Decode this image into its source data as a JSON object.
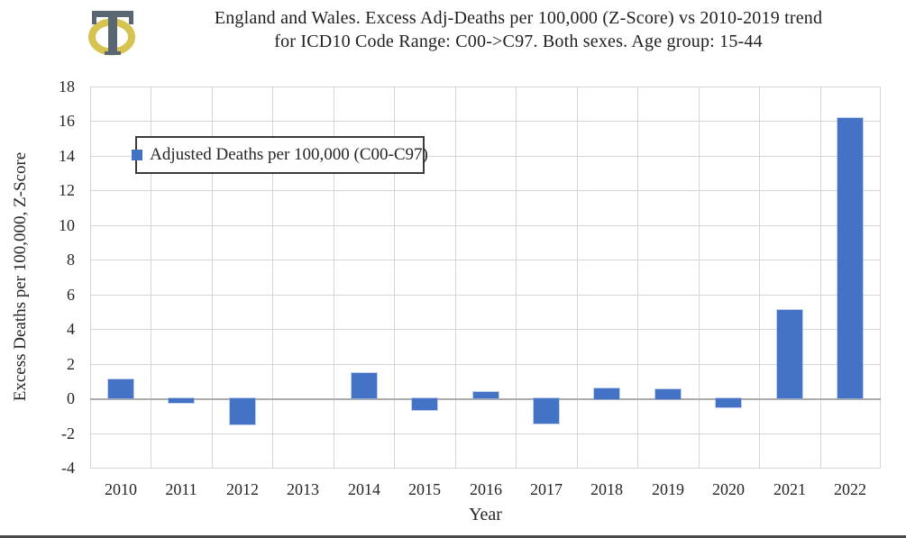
{
  "logo": {
    "description": "serif letter T overlapping a gold ellipse ring",
    "gold": "#d6c352",
    "gray": "#5b6673"
  },
  "chart_data": {
    "type": "bar",
    "title": "England and Wales. Excess Adj-Deaths per 100,000 (Z-Score) vs 2010-2019 trend for ICD10 Code Range: C00->C97. Both sexes. Age group: 15-44",
    "categories": [
      "2010",
      "2011",
      "2012",
      "2013",
      "2014",
      "2015",
      "2016",
      "2017",
      "2018",
      "2019",
      "2020",
      "2021",
      "2022"
    ],
    "values": [
      1.1,
      -0.25,
      -1.5,
      0,
      1.45,
      -0.7,
      0.35,
      -1.45,
      0.6,
      0.55,
      -0.5,
      5.1,
      16.2
    ],
    "series_name": "Adjusted Deaths per 100,000 (C00-C97)",
    "xlabel": "Year",
    "ylabel": "Excess Deaths per 100,000, Z-Score",
    "ylim": [
      -4,
      18
    ],
    "ytick_step": 2,
    "grid": true,
    "legend_position": "top-left-inside",
    "bar_color": "#4472C4",
    "gridline_color": "#d6d6d6"
  }
}
